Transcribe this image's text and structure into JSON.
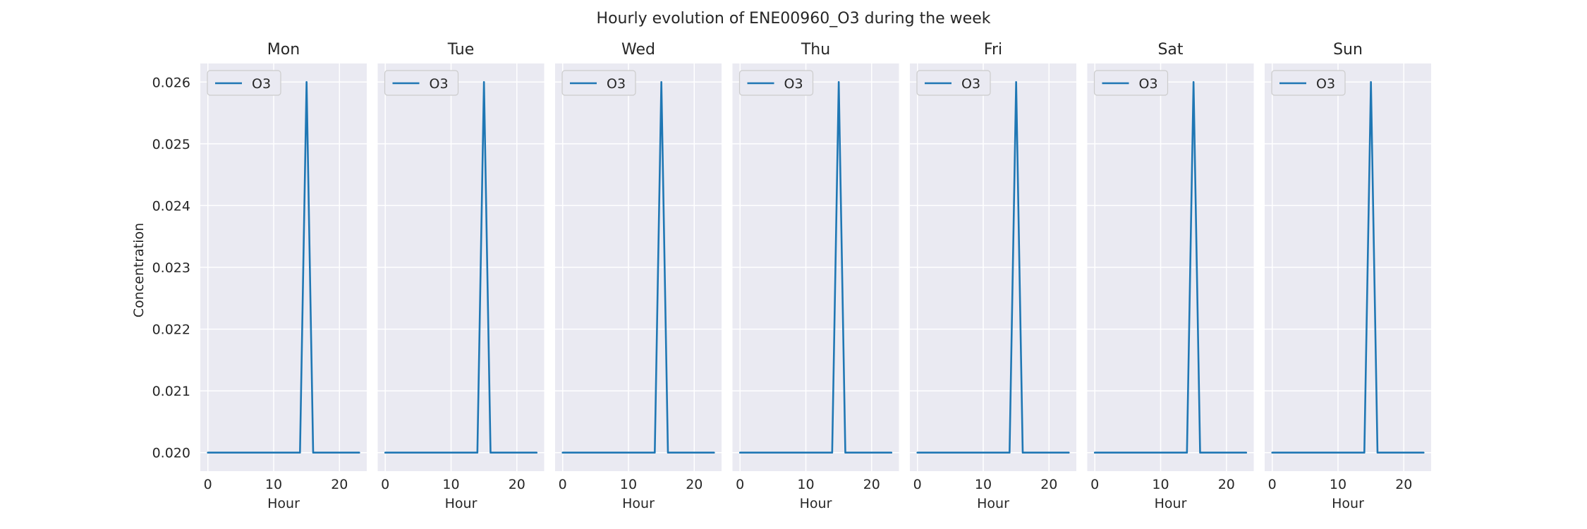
{
  "chart_data": {
    "type": "line",
    "title": "Hourly evolution of ENE00960_O3 during the week",
    "ylabel": "Concentration",
    "xlabel": "Hour",
    "xlim": [
      -1.15,
      24.15
    ],
    "ylim": [
      0.0197,
      0.0263
    ],
    "xticks": [
      0,
      10,
      20
    ],
    "yticks": [
      0.02,
      0.021,
      0.022,
      0.023,
      0.024,
      0.025,
      0.026
    ],
    "ytick_labels": [
      "0.020",
      "0.021",
      "0.022",
      "0.023",
      "0.024",
      "0.025",
      "0.026"
    ],
    "grid": true,
    "legend_position": "top-left",
    "colors": {
      "line": "#1f77b4",
      "panel_bg": "#eaeaf2",
      "grid": "#ffffff",
      "text": "#262626"
    },
    "x": [
      0,
      1,
      2,
      3,
      4,
      5,
      6,
      7,
      8,
      9,
      10,
      11,
      12,
      13,
      14,
      15,
      16,
      17,
      18,
      19,
      20,
      21,
      22,
      23
    ],
    "panels": [
      {
        "title": "Mon",
        "series": [
          {
            "name": "O3",
            "values": [
              0.02,
              0.02,
              0.02,
              0.02,
              0.02,
              0.02,
              0.02,
              0.02,
              0.02,
              0.02,
              0.02,
              0.02,
              0.02,
              0.02,
              0.02,
              0.026,
              0.02,
              0.02,
              0.02,
              0.02,
              0.02,
              0.02,
              0.02,
              0.02
            ]
          }
        ]
      },
      {
        "title": "Tue",
        "series": [
          {
            "name": "O3",
            "values": [
              0.02,
              0.02,
              0.02,
              0.02,
              0.02,
              0.02,
              0.02,
              0.02,
              0.02,
              0.02,
              0.02,
              0.02,
              0.02,
              0.02,
              0.02,
              0.026,
              0.02,
              0.02,
              0.02,
              0.02,
              0.02,
              0.02,
              0.02,
              0.02
            ]
          }
        ]
      },
      {
        "title": "Wed",
        "series": [
          {
            "name": "O3",
            "values": [
              0.02,
              0.02,
              0.02,
              0.02,
              0.02,
              0.02,
              0.02,
              0.02,
              0.02,
              0.02,
              0.02,
              0.02,
              0.02,
              0.02,
              0.02,
              0.026,
              0.02,
              0.02,
              0.02,
              0.02,
              0.02,
              0.02,
              0.02,
              0.02
            ]
          }
        ]
      },
      {
        "title": "Thu",
        "series": [
          {
            "name": "O3",
            "values": [
              0.02,
              0.02,
              0.02,
              0.02,
              0.02,
              0.02,
              0.02,
              0.02,
              0.02,
              0.02,
              0.02,
              0.02,
              0.02,
              0.02,
              0.02,
              0.026,
              0.02,
              0.02,
              0.02,
              0.02,
              0.02,
              0.02,
              0.02,
              0.02
            ]
          }
        ]
      },
      {
        "title": "Fri",
        "series": [
          {
            "name": "O3",
            "values": [
              0.02,
              0.02,
              0.02,
              0.02,
              0.02,
              0.02,
              0.02,
              0.02,
              0.02,
              0.02,
              0.02,
              0.02,
              0.02,
              0.02,
              0.02,
              0.026,
              0.02,
              0.02,
              0.02,
              0.02,
              0.02,
              0.02,
              0.02,
              0.02
            ]
          }
        ]
      },
      {
        "title": "Sat",
        "series": [
          {
            "name": "O3",
            "values": [
              0.02,
              0.02,
              0.02,
              0.02,
              0.02,
              0.02,
              0.02,
              0.02,
              0.02,
              0.02,
              0.02,
              0.02,
              0.02,
              0.02,
              0.02,
              0.026,
              0.02,
              0.02,
              0.02,
              0.02,
              0.02,
              0.02,
              0.02,
              0.02
            ]
          }
        ]
      },
      {
        "title": "Sun",
        "series": [
          {
            "name": "O3",
            "values": [
              0.02,
              0.02,
              0.02,
              0.02,
              0.02,
              0.02,
              0.02,
              0.02,
              0.02,
              0.02,
              0.02,
              0.02,
              0.02,
              0.02,
              0.02,
              0.026,
              0.02,
              0.02,
              0.02,
              0.02,
              0.02,
              0.02,
              0.02,
              0.02
            ]
          }
        ]
      }
    ]
  }
}
